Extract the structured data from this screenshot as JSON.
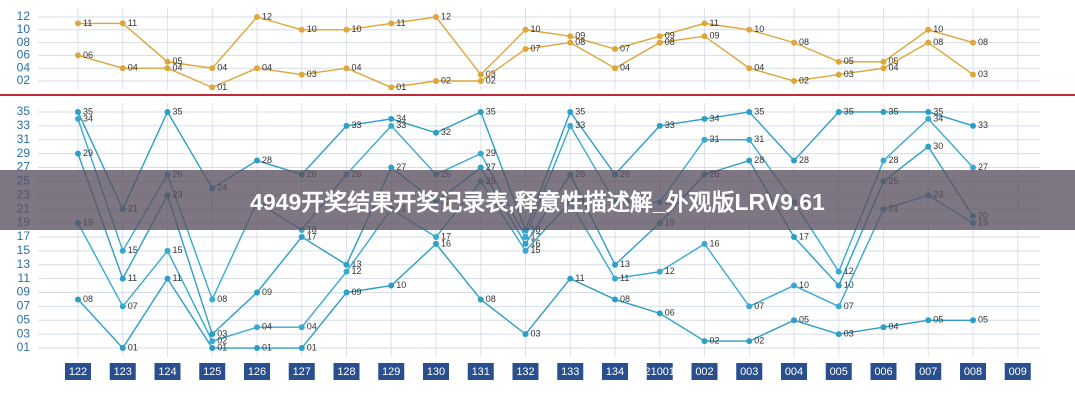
{
  "banner": "4949开奖结果开奖记录表,释意性描述解_外观版LRV9.61",
  "chart_data": [
    {
      "type": "line",
      "ylim": [
        1,
        13
      ],
      "yticks": [
        {
          "value": 2,
          "label": "02"
        },
        {
          "value": 4,
          "label": "04"
        },
        {
          "value": 6,
          "label": "06"
        },
        {
          "value": 8,
          "label": "08"
        },
        10,
        12
      ],
      "grid": true,
      "series": [
        {
          "color": "#dda63a",
          "values": [
            11,
            11,
            5,
            4,
            12,
            10,
            10,
            11,
            12,
            3,
            10,
            9,
            7,
            9,
            11,
            10,
            8,
            5,
            5,
            10,
            8,
            null
          ],
          "value_labels": [
            "11",
            "11",
            "05",
            "04",
            "12",
            "10",
            "10",
            "11",
            "12",
            "03",
            "10",
            "09",
            "07",
            "09",
            "11",
            "10",
            "08",
            "05",
            "05",
            "10",
            "08",
            null
          ]
        },
        {
          "color": "#dda63a",
          "values": [
            6,
            4,
            4,
            1,
            4,
            3,
            4,
            1,
            2,
            2,
            7,
            8,
            4,
            8,
            9,
            4,
            2,
            3,
            4,
            8,
            3,
            null
          ],
          "value_labels": [
            "06",
            "04",
            "04",
            "01",
            "04",
            "03",
            "04",
            "01",
            "02",
            "02",
            "07",
            "08",
            "04",
            "08",
            "09",
            "04",
            "02",
            "03",
            "04",
            "08",
            "03",
            null
          ]
        }
      ]
    },
    {
      "type": "line",
      "ylim": [
        0,
        36
      ],
      "categories": [
        "122",
        "123",
        "124",
        "125",
        "126",
        "127",
        "128",
        "129",
        "130",
        "131",
        "132",
        "133",
        "134",
        "21001",
        "002",
        "003",
        "004",
        "005",
        "006",
        "007",
        "008",
        "009"
      ],
      "yticks": [
        {
          "value": 1,
          "label": "01"
        },
        {
          "value": 3,
          "label": "03"
        },
        {
          "value": 5,
          "label": "05"
        },
        {
          "value": 7,
          "label": "07"
        },
        {
          "value": 9,
          "label": "09"
        },
        11,
        13,
        15,
        17,
        19,
        21,
        23,
        25,
        27,
        29,
        31,
        33,
        35
      ],
      "grid": true,
      "series": [
        {
          "color": "#2d9ec6",
          "values": [
            35,
            21,
            35,
            24,
            28,
            26,
            33,
            34,
            32,
            35,
            18,
            35,
            26,
            33,
            34,
            35,
            28,
            35,
            35,
            35,
            33,
            null
          ],
          "value_labels": [
            "35",
            "21",
            "35",
            "24",
            "28",
            "26",
            "33",
            "34",
            "32",
            "35",
            "18",
            "35",
            "26",
            "33",
            "34",
            "35",
            "28",
            "35",
            "35",
            "35",
            "33",
            null
          ]
        },
        {
          "color": "#3aa9cf",
          "values": [
            34,
            15,
            26,
            8,
            22,
            18,
            26,
            33,
            26,
            29,
            17,
            33,
            22,
            22,
            31,
            31,
            22,
            12,
            28,
            34,
            27,
            null
          ],
          "value_labels": [
            "34",
            "15",
            "26",
            "08",
            "22",
            "18",
            "26",
            "33",
            "26",
            "29",
            "17",
            "33",
            "22",
            "22",
            "31",
            "31",
            "22",
            "12",
            "28",
            "34",
            "27",
            null
          ]
        },
        {
          "color": "#2d9ec6",
          "values": [
            29,
            11,
            23,
            3,
            9,
            17,
            13,
            27,
            22,
            27,
            16,
            26,
            13,
            19,
            26,
            28,
            17,
            10,
            25,
            30,
            20,
            null
          ],
          "value_labels": [
            "29",
            "11",
            "23",
            "03",
            "09",
            "17",
            "13",
            "27",
            "22",
            "27",
            "16",
            "26",
            "13",
            "19",
            "26",
            "28",
            "17",
            "10",
            "25",
            "30",
            "20",
            null
          ]
        },
        {
          "color": "#3aa9cf",
          "values": [
            19,
            7,
            15,
            2,
            4,
            4,
            12,
            21,
            17,
            25,
            15,
            22,
            11,
            12,
            16,
            7,
            10,
            7,
            21,
            23,
            19,
            null
          ],
          "value_labels": [
            "19",
            "07",
            "15",
            "02",
            "04",
            "04",
            "12",
            "21",
            "17",
            "25",
            "15",
            "22",
            "11",
            "12",
            "16",
            "07",
            "10",
            "07",
            "21",
            "23",
            "19",
            null
          ]
        },
        {
          "color": "#2d9ec6",
          "values": [
            8,
            1,
            11,
            1,
            1,
            1,
            9,
            10,
            16,
            8,
            3,
            11,
            8,
            6,
            2,
            2,
            5,
            3,
            4,
            5,
            5,
            null
          ],
          "value_labels": [
            "08",
            "01",
            "11",
            "01",
            "01",
            "01",
            "09",
            "10",
            "16",
            "08",
            "03",
            "11",
            "08",
            "06",
            "02",
            "02",
            "05",
            "03",
            "04",
            "05",
            "05",
            null
          ]
        }
      ]
    }
  ]
}
